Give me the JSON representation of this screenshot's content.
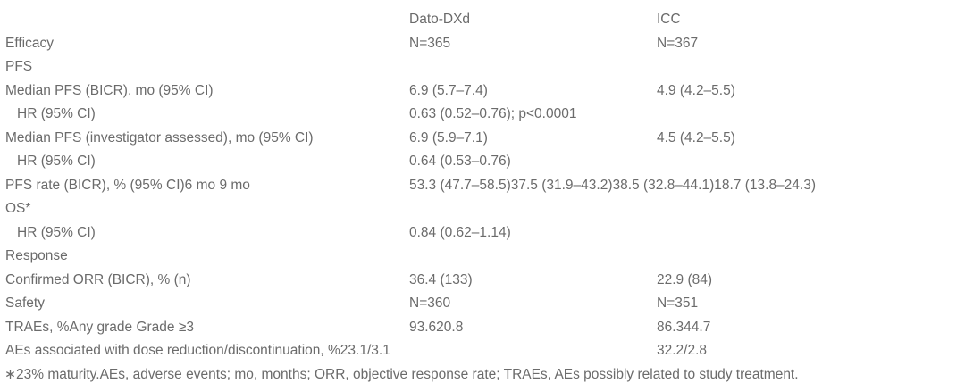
{
  "table": {
    "header": {
      "dato": "Dato-DXd",
      "icc": "ICC"
    },
    "rows": [
      {
        "label": "",
        "dato": "Dato-DXd",
        "icc": "ICC"
      },
      {
        "label": "Efficacy",
        "dato": "N=365",
        "icc": "N=367"
      },
      {
        "label": "PFS",
        "dato": "",
        "icc": ""
      },
      {
        "label": "Median PFS (BICR), mo (95% CI)",
        "dato": "6.9 (5.7–7.4)",
        "icc": "4.9 (4.2–5.5)"
      },
      {
        "label": "HR (95% CI)",
        "dato": "0.63 (0.52–0.76); p<0.0001",
        "icc": ""
      },
      {
        "label": "Median PFS (investigator assessed), mo (95% CI)",
        "dato": "6.9 (5.9–7.1)",
        "icc": "4.5 (4.2–5.5)"
      },
      {
        "label": "HR (95% CI)",
        "dato": "0.64 (0.53–0.76)",
        "icc": ""
      },
      {
        "label": "PFS rate (BICR), % (95% CI)6 mo 9 mo",
        "dato": "53.3 (47.7–58.5)37.5 (31.9–43.2)38.5 (32.8–44.1)18.7 (13.8–24.3)",
        "icc": ""
      },
      {
        "label": "OS*",
        "dato": "",
        "icc": ""
      },
      {
        "label": "HR (95% CI)",
        "dato": "0.84 (0.62–1.14)",
        "icc": ""
      },
      {
        "label": "Response",
        "dato": "",
        "icc": ""
      },
      {
        "label": "Confirmed ORR (BICR), % (n)",
        "dato": "36.4 (133)",
        "icc": "22.9 (84)"
      },
      {
        "label": "Safety",
        "dato": "N=360",
        "icc": "N=351"
      },
      {
        "label": "TRAEs, %Any grade Grade ≥3",
        "dato": "93.620.8",
        "icc": "86.344.7"
      },
      {
        "label": "AEs associated with dose reduction/discontinuation, %23.1/3.1",
        "dato": "",
        "icc": "32.2/2.8"
      }
    ],
    "footnote": "∗23% maturity.AEs, adverse events; mo, months; ORR, objective response rate; TRAEs, AEs possibly related to study treatment.",
    "text_color": "#6b6b6b",
    "background_color": "#ffffff"
  }
}
